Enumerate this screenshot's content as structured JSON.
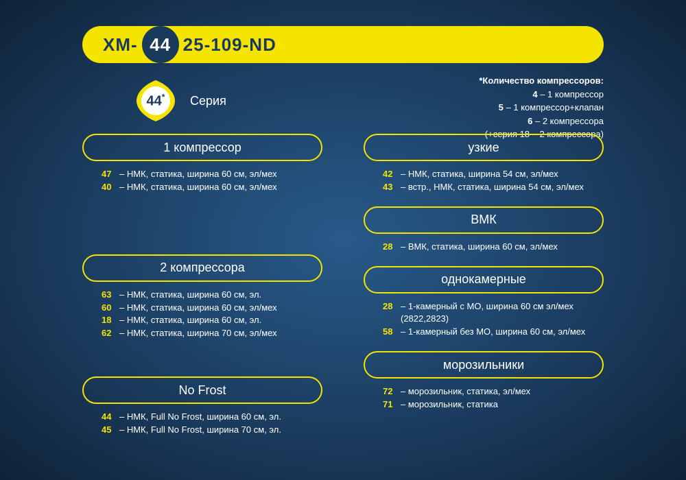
{
  "colors": {
    "accent": "#f4e400",
    "bgDark": "#1a3a5c",
    "text": "#ffffff"
  },
  "header": {
    "prefix": "XM-",
    "badge": "44",
    "suffix": "25-109-ND"
  },
  "series": {
    "badge": "44",
    "star": "*",
    "label": "Серия"
  },
  "note": {
    "title": "*Количество компрессоров:",
    "lines": [
      {
        "code": "4",
        "text": " – 1 компрессор"
      },
      {
        "code": "5",
        "text": " – 1 компрессор+клапан"
      },
      {
        "code": "6",
        "text": " – 2 компрессора"
      }
    ],
    "extra": "(+серия 18 – 2 компрессора)"
  },
  "leftGroups": [
    {
      "title": "1 компрессор",
      "items": [
        {
          "code": "47",
          "desc": " – НМК, статика, ширина 60 см, эл/мех"
        },
        {
          "code": "40",
          "desc": " – НМК, статика, ширина 60 см, эл/мех"
        }
      ],
      "spacerAfter": "spacer-1"
    },
    {
      "title": "2 компрессора",
      "items": [
        {
          "code": "63",
          "desc": " – НМК, статика, ширина 60 см, эл."
        },
        {
          "code": "60",
          "desc": " – НМК, статика, ширина 60 см, эл/мех"
        },
        {
          "code": "18",
          "desc": " – НМК, статика, ширина 60 см, эл."
        },
        {
          "code": "62",
          "desc": " – НМК, статика, ширина 70 см, эл/мех"
        }
      ],
      "spacerAfter": "spacer-2"
    },
    {
      "title": "No Frost",
      "items": [
        {
          "code": "44",
          "desc": " – НМК, Full No Frost, ширина 60 см, эл."
        },
        {
          "code": "45",
          "desc": " – НМК, Full No Frost, ширина 70 см, эл."
        }
      ]
    }
  ],
  "rightGroups": [
    {
      "title": "узкие",
      "items": [
        {
          "code": "42",
          "desc": " – НМК, статика, ширина 54 см, эл/мех"
        },
        {
          "code": "43",
          "desc": " –  встр., НМК, статика, ширина 54 см, эл/мех"
        }
      ]
    },
    {
      "title": "ВМК",
      "items": [
        {
          "code": "28",
          "desc": " – ВМК, статика, ширина 60 см, эл/мех"
        }
      ]
    },
    {
      "title": "однокамерные",
      "items": [
        {
          "code": "28",
          "desc": " – 1-камерный с МО, ширина 60 см эл/мех (2822,2823)"
        },
        {
          "code": "58",
          "desc": " – 1-камерный без МО, ширина 60 см, эл/мех"
        }
      ]
    },
    {
      "title": "морозильники",
      "items": [
        {
          "code": "72",
          "desc": " – морозильник, статика, эл/мех"
        },
        {
          "code": "71",
          "desc": " – морозильник, статика"
        }
      ]
    }
  ]
}
